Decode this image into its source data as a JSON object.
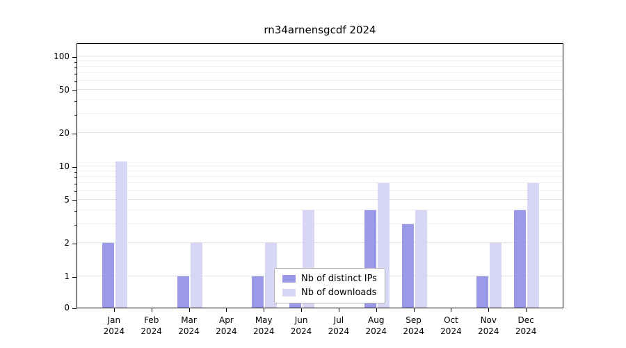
{
  "chart_data": {
    "type": "bar",
    "title": "rn34arnensgcdf 2024",
    "categories": [
      "Jan",
      "Feb",
      "Mar",
      "Apr",
      "May",
      "Jun",
      "Jul",
      "Aug",
      "Sep",
      "Oct",
      "Nov",
      "Dec"
    ],
    "xtick_year": "2024",
    "series": [
      {
        "name": "Nb of distinct IPs",
        "color": "#9a9ae8",
        "values": [
          2,
          0,
          1,
          0,
          1,
          1,
          0,
          4,
          3,
          0,
          1,
          4
        ]
      },
      {
        "name": "Nb of downloads",
        "color": "#d7d7f5",
        "values": [
          11,
          0,
          2,
          0,
          2,
          4,
          0,
          7,
          4,
          0,
          2,
          7
        ]
      }
    ],
    "yscale": "symlog",
    "yticks": [
      0,
      1,
      2,
      5,
      10,
      20,
      50,
      100
    ],
    "minor_yticks": [
      3,
      4,
      6,
      7,
      8,
      9,
      30,
      40,
      60,
      70,
      80,
      90
    ],
    "ylim": [
      0,
      130
    ],
    "grid": "horizontal",
    "grid_major_color": "#e0e0e0",
    "grid_minor_color": "#efefef",
    "legend_position": "lower center"
  }
}
